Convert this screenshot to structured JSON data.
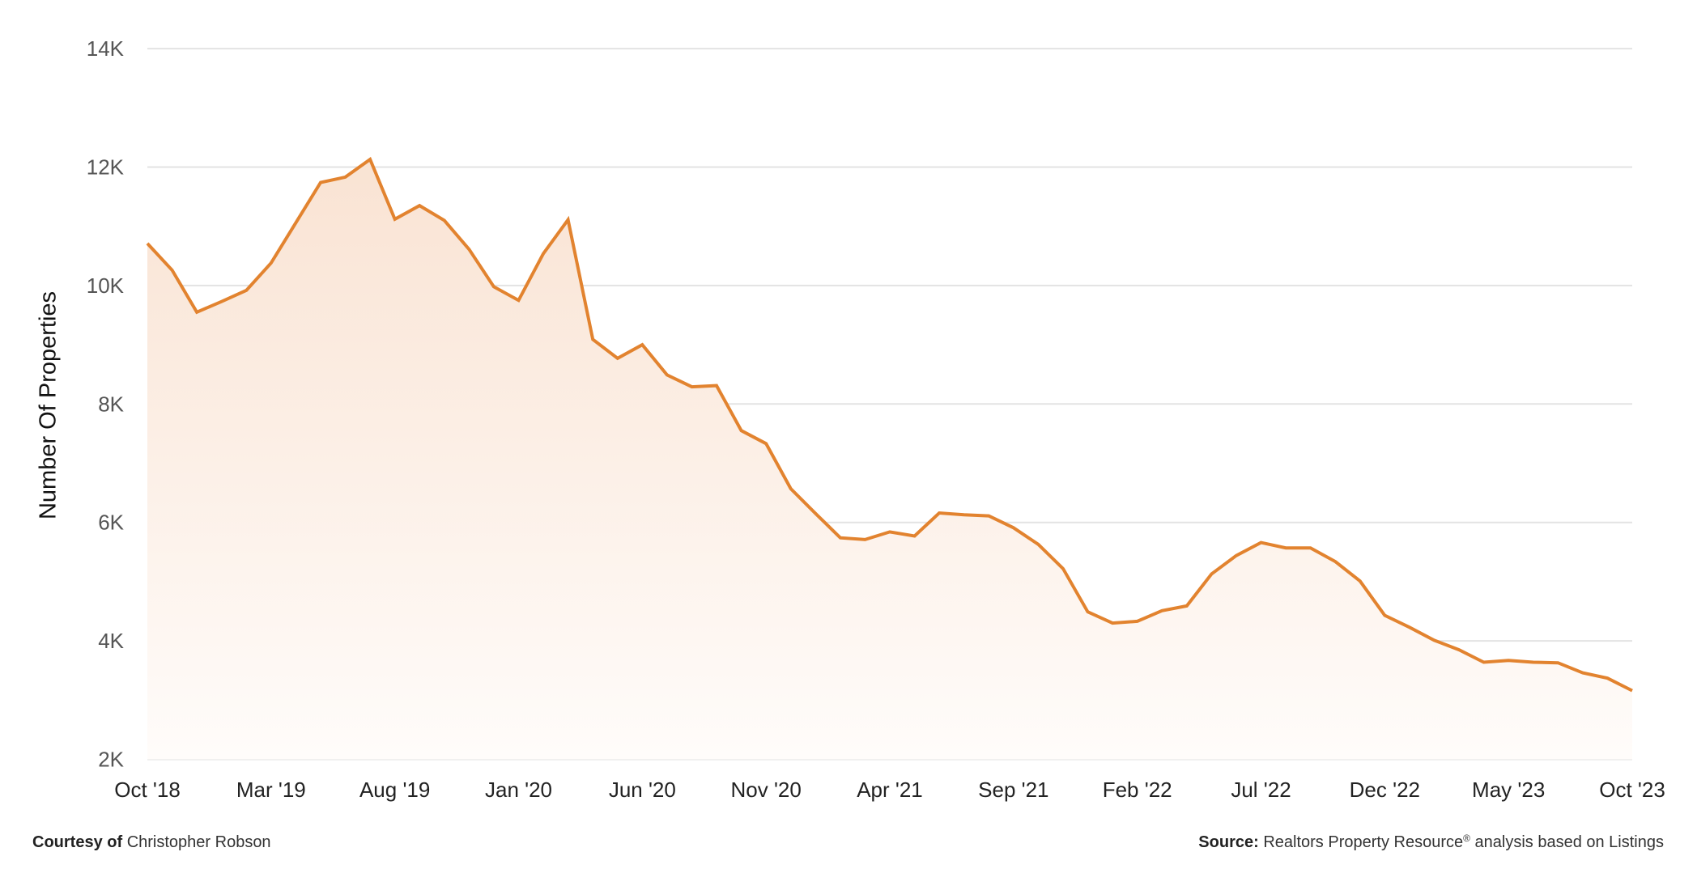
{
  "chart_data": {
    "type": "area",
    "title": "",
    "xlabel": "",
    "ylabel": "Number Of Properties",
    "ylim": [
      2000,
      14000
    ],
    "yticks": [
      2000,
      4000,
      6000,
      8000,
      10000,
      12000,
      14000
    ],
    "ytick_labels": [
      "2K",
      "4K",
      "6K",
      "8K",
      "10K",
      "12K",
      "14K"
    ],
    "xtick_labels": [
      "Oct '18",
      "Mar '19",
      "Aug '19",
      "Jan '20",
      "Jun '20",
      "Nov '20",
      "Apr '21",
      "Sep '21",
      "Feb '22",
      "Jul '22",
      "Dec '22",
      "May '23",
      "Oct '23"
    ],
    "xtick_every_n_points": 5,
    "grid": true,
    "legend": null,
    "categories": [
      "Oct '18",
      "Nov '18",
      "Dec '18",
      "Jan '19",
      "Feb '19",
      "Mar '19",
      "Apr '19",
      "May '19",
      "Jun '19",
      "Jul '19",
      "Aug '19",
      "Sep '19",
      "Oct '19",
      "Nov '19",
      "Dec '19",
      "Jan '20",
      "Feb '20",
      "Mar '20",
      "Apr '20",
      "May '20",
      "Jun '20",
      "Jul '20",
      "Aug '20",
      "Sep '20",
      "Oct '20",
      "Nov '20",
      "Dec '20",
      "Jan '21",
      "Feb '21",
      "Mar '21",
      "Apr '21",
      "May '21",
      "Jun '21",
      "Jul '21",
      "Aug '21",
      "Sep '21",
      "Oct '21",
      "Nov '21",
      "Dec '21",
      "Jan '22",
      "Feb '22",
      "Mar '22",
      "Apr '22",
      "May '22",
      "Jun '22",
      "Jul '22",
      "Aug '22",
      "Sep '22",
      "Oct '22",
      "Nov '22",
      "Dec '22",
      "Jan '23",
      "Feb '23",
      "Mar '23",
      "Apr '23",
      "May '23",
      "Jun '23",
      "Jul '23",
      "Aug '23",
      "Sep '23",
      "Oct '23"
    ],
    "series": [
      {
        "name": "Number Of Properties",
        "color": "#E2832F",
        "fill_top": "#F9E3D3",
        "fill_bottom": "#FFFCFA",
        "values": [
          10710,
          10260,
          9550,
          9730,
          9920,
          10380,
          11060,
          11740,
          11830,
          12130,
          11120,
          11350,
          11100,
          10610,
          9980,
          9750,
          10540,
          11110,
          9090,
          8770,
          9000,
          8490,
          8290,
          8310,
          7550,
          7330,
          6570,
          6150,
          5740,
          5710,
          5840,
          5770,
          6160,
          6130,
          6110,
          5910,
          5630,
          5220,
          4490,
          4300,
          4330,
          4510,
          4590,
          5130,
          5440,
          5660,
          5570,
          5570,
          5340,
          5010,
          4430,
          4230,
          4010,
          3850,
          3640,
          3670,
          3640,
          3630,
          3460,
          3370,
          3160
        ]
      }
    ]
  },
  "colors": {
    "line": "#E2832F",
    "grid": "#E3E3E3",
    "tick_text": "#555555",
    "axis_label_text": "#222222"
  },
  "footer": {
    "courtesy_label": "Courtesy of",
    "courtesy_name": "Christopher Robson",
    "source_label": "Source:",
    "source_text": "Realtors Property Resource",
    "source_mark": "®",
    "source_suffix": "analysis based on Listings"
  }
}
